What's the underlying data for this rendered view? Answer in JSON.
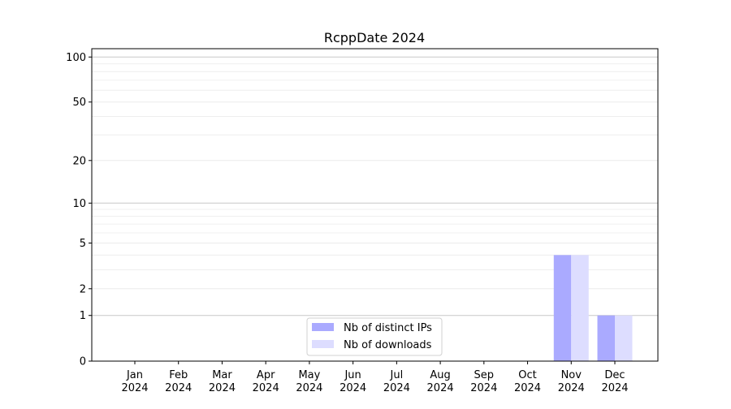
{
  "chart_data": {
    "type": "bar",
    "title": "RcppDate 2024",
    "xlabel": "",
    "ylabel": "",
    "yscale": "log(1+y)",
    "ylim": [
      0,
      113.6
    ],
    "yticks": [
      0,
      1,
      2,
      5,
      10,
      20,
      50,
      100
    ],
    "ytick_labels": [
      "0",
      "1",
      "2",
      "5",
      "10",
      "20",
      "50",
      "100"
    ],
    "minor_gridlines": [
      3,
      4,
      6,
      7,
      8,
      9,
      30,
      40,
      60,
      70,
      80,
      90
    ],
    "grid": true,
    "legend_position": "lower-center",
    "categories": [
      "Jan\n2024",
      "Feb\n2024",
      "Mar\n2024",
      "Apr\n2024",
      "May\n2024",
      "Jun\n2024",
      "Jul\n2024",
      "Aug\n2024",
      "Sep\n2024",
      "Oct\n2024",
      "Nov\n2024",
      "Dec\n2024"
    ],
    "category_labels": [
      [
        "Jan",
        "2024"
      ],
      [
        "Feb",
        "2024"
      ],
      [
        "Mar",
        "2024"
      ],
      [
        "Apr",
        "2024"
      ],
      [
        "May",
        "2024"
      ],
      [
        "Jun",
        "2024"
      ],
      [
        "Jul",
        "2024"
      ],
      [
        "Aug",
        "2024"
      ],
      [
        "Sep",
        "2024"
      ],
      [
        "Oct",
        "2024"
      ],
      [
        "Nov",
        "2024"
      ],
      [
        "Dec",
        "2024"
      ]
    ],
    "series": [
      {
        "name": "Nb of distinct IPs",
        "color": "#aaaaff",
        "values": [
          0,
          0,
          0,
          0,
          0,
          0,
          0,
          0,
          0,
          0,
          4,
          1
        ]
      },
      {
        "name": "Nb of downloads",
        "color": "#ddddff",
        "values": [
          0,
          0,
          0,
          0,
          0,
          0,
          0,
          0,
          0,
          0,
          4,
          1
        ]
      }
    ]
  }
}
